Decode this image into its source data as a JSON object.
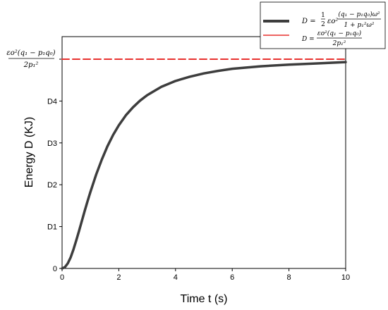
{
  "chart_data": {
    "type": "line",
    "xlabel": "Time t (s)",
    "ylabel": "Energy D (KJ)",
    "xlim": [
      0,
      10
    ],
    "ylim": [
      0,
      5
    ],
    "x_ticks": [
      "0",
      "2",
      "4",
      "6",
      "8",
      "10"
    ],
    "y_ticks": [
      "0",
      "D1",
      "D2",
      "D3",
      "D4"
    ],
    "y_top_label": {
      "num": "εo²(q₁ − p₁q₀)",
      "den": "2p₁²"
    },
    "grid": false,
    "legend_position": "top-right",
    "series": [
      {
        "name": "D = ½ εo² (q₁ − p₁q₀)ω² / (1 + p₁²ω²)",
        "color": "#3d3d3d",
        "style": "solid",
        "x": [
          0,
          0.1,
          0.2,
          0.3,
          0.4,
          0.5,
          0.6,
          0.7,
          0.8,
          0.9,
          1.0,
          1.2,
          1.4,
          1.6,
          1.8,
          2.0,
          2.25,
          2.5,
          2.75,
          3.0,
          3.5,
          4.0,
          4.5,
          5.0,
          5.5,
          6.0,
          7.0,
          8.0,
          9.0,
          10.0
        ],
        "y": [
          0,
          0.03,
          0.12,
          0.26,
          0.45,
          0.67,
          0.9,
          1.14,
          1.38,
          1.61,
          1.83,
          2.24,
          2.6,
          2.92,
          3.19,
          3.42,
          3.66,
          3.85,
          4.01,
          4.14,
          4.34,
          4.48,
          4.58,
          4.66,
          4.72,
          4.77,
          4.83,
          4.87,
          4.9,
          4.93
        ]
      },
      {
        "name": "D = εo²(q₁ − p₁q₀) / 2p₁²",
        "color": "#e8312f",
        "style": "dashed",
        "x": [
          0,
          10
        ],
        "y": [
          5,
          5
        ]
      }
    ],
    "legend": [
      {
        "lhs": "D =",
        "frac1_num": "1",
        "frac1_den": "2",
        "coef": "εo²",
        "frac2_num": "(q₁ − p₁q₀)ω²",
        "frac2_den": "1 + p₁²ω²"
      },
      {
        "lhs": "D =",
        "frac_num": "εo²(q₁ − p₁q₀)",
        "frac_den": "2p₁²"
      }
    ]
  }
}
